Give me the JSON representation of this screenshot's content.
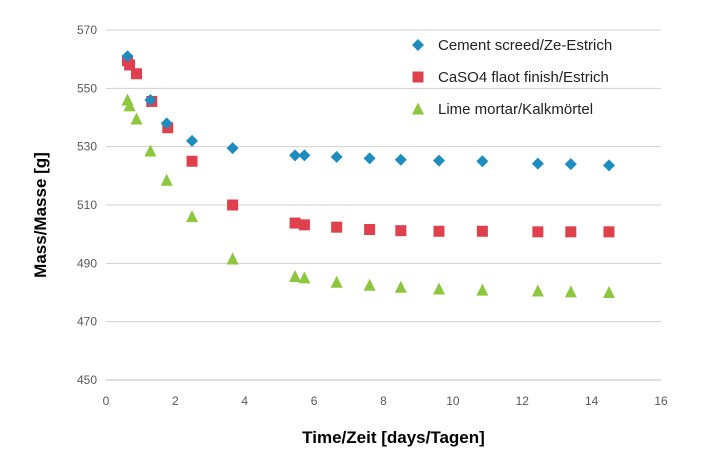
{
  "chart_data": {
    "type": "scatter",
    "title": "",
    "xlabel": "Time/Zeit [days/Tagen]",
    "ylabel": "Mass/Masse [g]",
    "xlim": [
      0,
      16
    ],
    "ylim": [
      450,
      570
    ],
    "x_ticks": [
      0,
      2,
      4,
      6,
      8,
      10,
      12,
      14,
      16
    ],
    "y_ticks": [
      450,
      470,
      490,
      510,
      530,
      550,
      570
    ],
    "grid": "horizontal",
    "legend_position": "top-right",
    "series": [
      {
        "name": "Cement screed/Ze-Estrich",
        "marker": "diamond",
        "color": "#1F8CC0",
        "x": [
          0.62,
          1.28,
          1.75,
          2.48,
          3.65,
          5.45,
          5.72,
          6.65,
          7.6,
          8.5,
          9.6,
          10.85,
          12.45,
          13.4,
          14.5
        ],
        "y": [
          561,
          546,
          538,
          532,
          529.5,
          527,
          527,
          526.5,
          526,
          525.5,
          525.2,
          525,
          524.2,
          524,
          523.6
        ]
      },
      {
        "name": "CaSO4 flaot finish/Estrich",
        "marker": "square",
        "color": "#E0404C",
        "x": [
          0.62,
          0.68,
          0.88,
          1.32,
          1.78,
          2.48,
          3.65,
          5.45,
          5.72,
          6.65,
          7.6,
          8.5,
          9.6,
          10.85,
          12.45,
          13.4,
          14.5
        ],
        "y": [
          559.5,
          558,
          555,
          545.5,
          536.5,
          525,
          510,
          503.8,
          503.2,
          502.4,
          501.6,
          501.2,
          501,
          501,
          500.8,
          500.8,
          500.8
        ]
      },
      {
        "name": "Lime mortar/Kalkmörtel",
        "marker": "triangle",
        "color": "#8DC63F",
        "x": [
          0.62,
          0.68,
          0.88,
          1.28,
          1.75,
          2.48,
          3.65,
          5.45,
          5.72,
          6.65,
          7.6,
          8.5,
          9.6,
          10.85,
          12.45,
          13.4,
          14.5
        ],
        "y": [
          546,
          544,
          539.5,
          528.5,
          518.5,
          506,
          491.5,
          485.5,
          485,
          483.5,
          482.5,
          481.8,
          481.2,
          480.8,
          480.5,
          480.2,
          480
        ]
      }
    ]
  }
}
